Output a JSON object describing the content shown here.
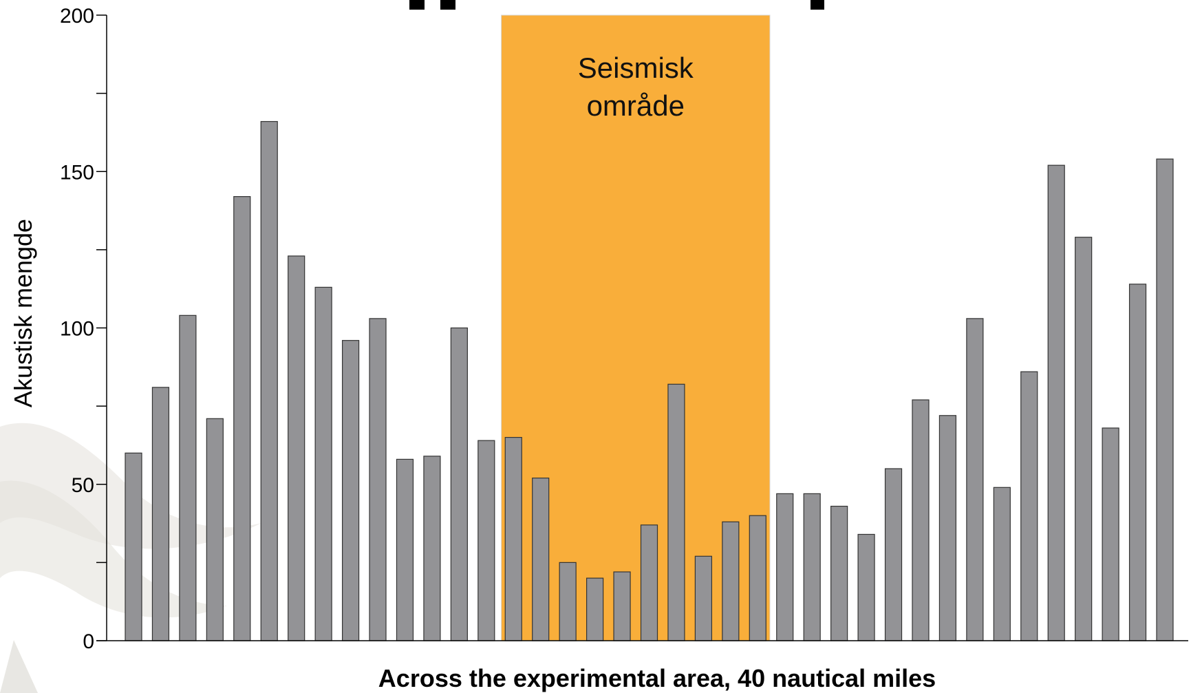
{
  "chart_data": {
    "type": "bar",
    "ylabel": "Akustisk mengde",
    "xlabel": "Across the experimental area, 40 nautical miles",
    "ylim": [
      0,
      200
    ],
    "yticks": [
      0,
      50,
      100,
      150,
      200
    ],
    "minor_yticks": [
      25,
      75,
      125,
      175
    ],
    "values": [
      60,
      81,
      104,
      71,
      142,
      166,
      123,
      113,
      96,
      103,
      58,
      59,
      100,
      64,
      65,
      52,
      25,
      20,
      22,
      37,
      82,
      27,
      38,
      40,
      47,
      47,
      43,
      34,
      55,
      77,
      72,
      103,
      49,
      86,
      152,
      129,
      68,
      114,
      154
    ],
    "highlight_region": {
      "label_lines": [
        "Seismisk",
        "område"
      ],
      "start_bar": 14,
      "end_bar": 23,
      "color": "#f9ae3a"
    },
    "bar_color": "#939396",
    "bar_edge_color": "#333333",
    "grid": false
  }
}
